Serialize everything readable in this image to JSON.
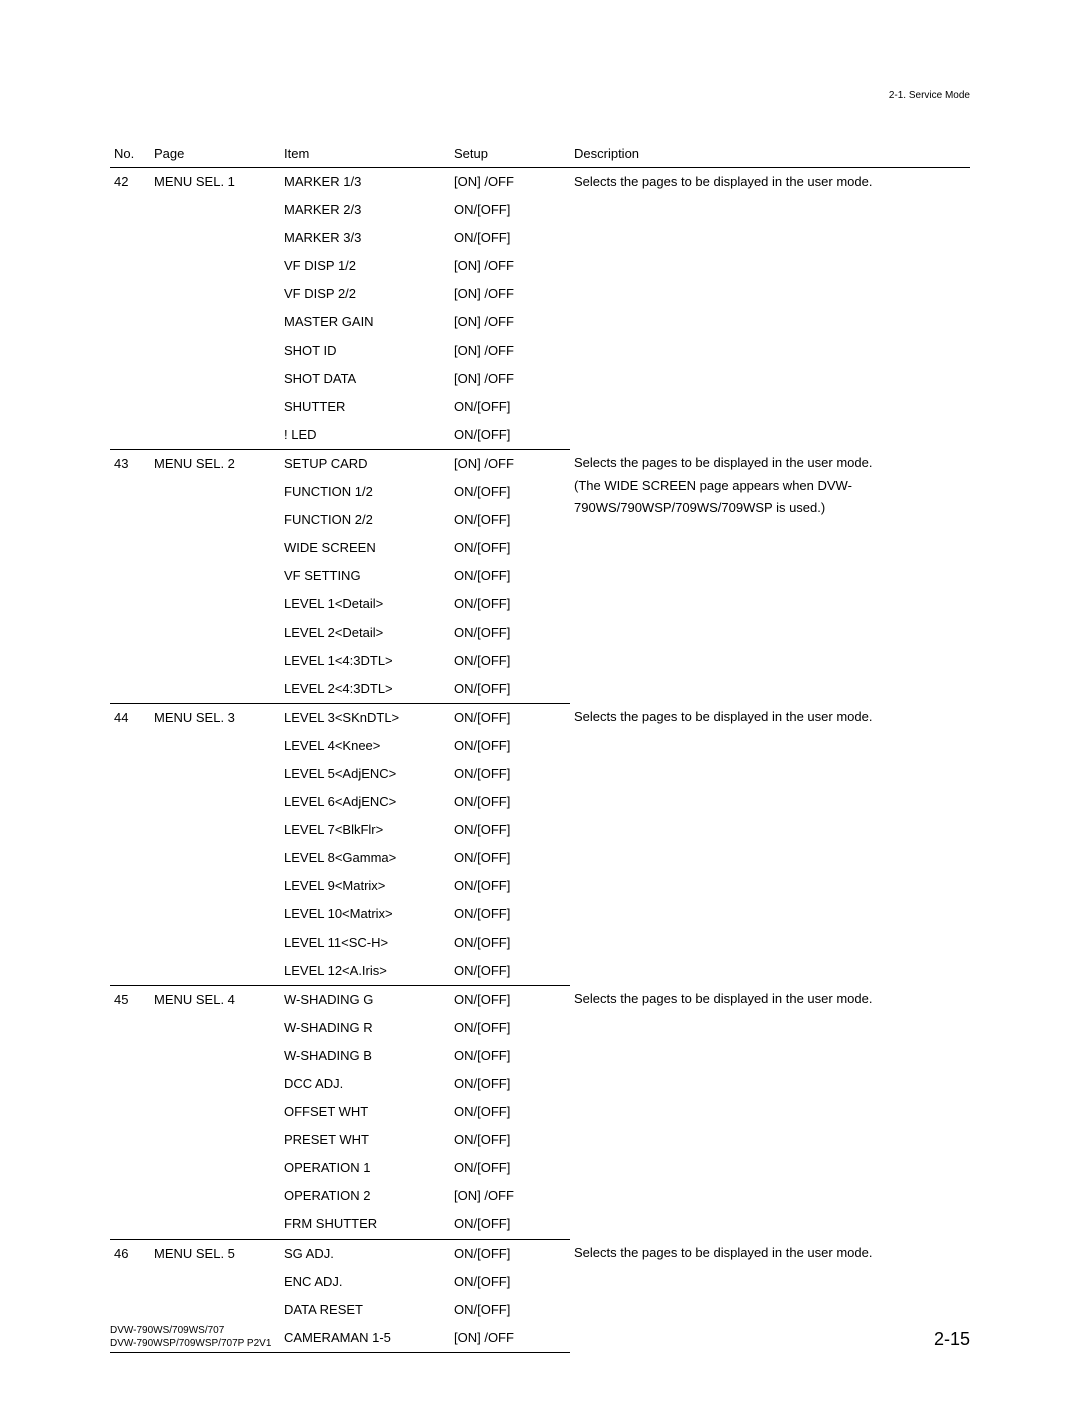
{
  "header_section": "2-1. Service Mode",
  "columns": {
    "no": "No.",
    "page": "Page",
    "item": "Item",
    "setup": "Setup",
    "desc": "Description"
  },
  "groups": [
    {
      "no": "42",
      "page": "MENU SEL. 1",
      "desc": "Selects the pages to be displayed in the user mode.",
      "rows": [
        {
          "item": "MARKER 1/3",
          "setup": "[ON] /OFF"
        },
        {
          "item": "MARKER 2/3",
          "setup": "ON/[OFF]"
        },
        {
          "item": "MARKER 3/3",
          "setup": "ON/[OFF]"
        },
        {
          "item": "VF DISP 1/2",
          "setup": "[ON] /OFF"
        },
        {
          "item": "VF DISP 2/2",
          "setup": "[ON] /OFF"
        },
        {
          "item": "MASTER GAIN",
          "setup": "[ON] /OFF"
        },
        {
          "item": "SHOT ID",
          "setup": "[ON] /OFF"
        },
        {
          "item": "SHOT DATA",
          "setup": "[ON] /OFF"
        },
        {
          "item": "SHUTTER",
          "setup": "ON/[OFF]"
        },
        {
          "item": "! LED",
          "setup": "ON/[OFF]"
        }
      ]
    },
    {
      "no": "43",
      "page": "MENU SEL. 2",
      "desc": "Selects the pages to be displayed in the user mode.\n(The WIDE SCREEN page appears when DVW-790WS/790WSP/709WS/709WSP is used.)",
      "rows": [
        {
          "item": "SETUP CARD",
          "setup": "[ON] /OFF"
        },
        {
          "item": "FUNCTION 1/2",
          "setup": "ON/[OFF]"
        },
        {
          "item": "FUNCTION 2/2",
          "setup": "ON/[OFF]"
        },
        {
          "item": "WIDE SCREEN",
          "setup": "ON/[OFF]"
        },
        {
          "item": "VF SETTING",
          "setup": "ON/[OFF]"
        },
        {
          "item": "LEVEL 1<Detail>",
          "setup": "ON/[OFF]"
        },
        {
          "item": "LEVEL 2<Detail>",
          "setup": "ON/[OFF]"
        },
        {
          "item": "LEVEL 1<4:3DTL>",
          "setup": "ON/[OFF]"
        },
        {
          "item": "LEVEL 2<4:3DTL>",
          "setup": "ON/[OFF]"
        }
      ]
    },
    {
      "no": "44",
      "page": "MENU SEL. 3",
      "desc": "Selects the pages to be displayed in the user mode.",
      "rows": [
        {
          "item": "LEVEL 3<SKnDTL>",
          "setup": "ON/[OFF]"
        },
        {
          "item": "LEVEL 4<Knee>",
          "setup": "ON/[OFF]"
        },
        {
          "item": "LEVEL 5<AdjENC>",
          "setup": "ON/[OFF]"
        },
        {
          "item": "LEVEL 6<AdjENC>",
          "setup": "ON/[OFF]"
        },
        {
          "item": "LEVEL 7<BlkFlr>",
          "setup": "ON/[OFF]"
        },
        {
          "item": "LEVEL 8<Gamma>",
          "setup": "ON/[OFF]"
        },
        {
          "item": "LEVEL 9<Matrix>",
          "setup": "ON/[OFF]"
        },
        {
          "item": "LEVEL 10<Matrix>",
          "setup": "ON/[OFF]"
        },
        {
          "item": "LEVEL 11<SC-H>",
          "setup": "ON/[OFF]"
        },
        {
          "item": "LEVEL 12<A.Iris>",
          "setup": "ON/[OFF]"
        }
      ]
    },
    {
      "no": "45",
      "page": "MENU SEL. 4",
      "desc": "Selects the pages to be displayed in the user mode.",
      "rows": [
        {
          "item": "W-SHADING G",
          "setup": "ON/[OFF]"
        },
        {
          "item": "W-SHADING R",
          "setup": "ON/[OFF]"
        },
        {
          "item": "W-SHADING B",
          "setup": "ON/[OFF]"
        },
        {
          "item": "DCC ADJ.",
          "setup": "ON/[OFF]"
        },
        {
          "item": "OFFSET WHT",
          "setup": "ON/[OFF]"
        },
        {
          "item": "PRESET WHT",
          "setup": "ON/[OFF]"
        },
        {
          "item": "OPERATION 1",
          "setup": "ON/[OFF]"
        },
        {
          "item": "OPERATION 2",
          "setup": "[ON] /OFF"
        },
        {
          "item": "FRM SHUTTER",
          "setup": "ON/[OFF]"
        }
      ]
    },
    {
      "no": "46",
      "page": "MENU SEL. 5",
      "desc": "Selects the pages to be displayed in the user mode.",
      "rows": [
        {
          "item": "SG ADJ.",
          "setup": "ON/[OFF]"
        },
        {
          "item": "ENC ADJ.",
          "setup": "ON/[OFF]"
        },
        {
          "item": "DATA RESET",
          "setup": "ON/[OFF]"
        },
        {
          "item": "CAMERAMAN 1-5",
          "setup": "[ON] /OFF"
        }
      ]
    }
  ],
  "footer": {
    "line1": "DVW-790WS/709WS/707",
    "line2": "DVW-790WSP/709WSP/707P P2V1",
    "pagenum": "2-15"
  }
}
